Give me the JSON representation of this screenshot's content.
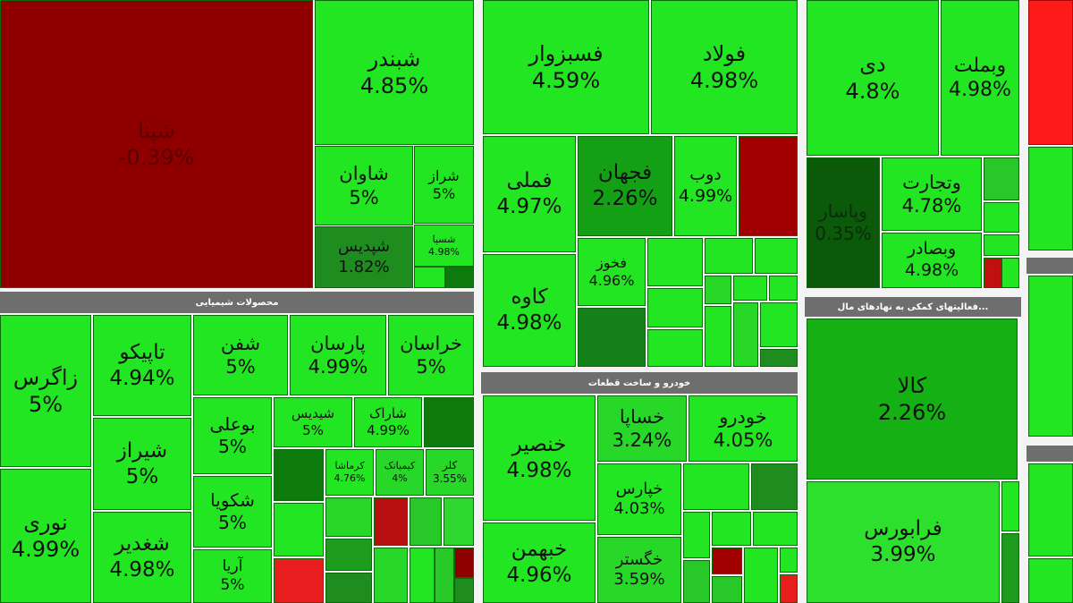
{
  "sections": [
    {
      "tiles": [
        {
          "name": "شپنا",
          "change": "-0.39%",
          "color": "#8e0000"
        },
        {
          "name": "شبندر",
          "change": "4.85%",
          "color": "#22e622"
        },
        {
          "name": "شاوان",
          "change": "5%",
          "color": "#22e622"
        },
        {
          "name": "شراز",
          "change": "5%",
          "color": "#22e622"
        },
        {
          "name": "شپدیس",
          "change": "1.82%",
          "color": "#1e8c1e"
        },
        {
          "name": "شسپا",
          "change": "4.98%",
          "color": "#22e622"
        }
      ]
    },
    {
      "title": "محصولات شیمیایی",
      "tiles": [
        {
          "name": "زاگرس",
          "change": "5%",
          "color": "#22e622"
        },
        {
          "name": "نوری",
          "change": "4.99%",
          "color": "#22e622"
        },
        {
          "name": "تاپیکو",
          "change": "4.94%",
          "color": "#22e622"
        },
        {
          "name": "شیراز",
          "change": "5%",
          "color": "#22e622"
        },
        {
          "name": "شغدیر",
          "change": "4.98%",
          "color": "#22e622"
        },
        {
          "name": "شفن",
          "change": "5%",
          "color": "#22e622"
        },
        {
          "name": "پارسان",
          "change": "4.99%",
          "color": "#22e622"
        },
        {
          "name": "خراسان",
          "change": "5%",
          "color": "#22e622"
        },
        {
          "name": "بوعلی",
          "change": "5%",
          "color": "#22e622"
        },
        {
          "name": "شکویا",
          "change": "5%",
          "color": "#22e622"
        },
        {
          "name": "آریا",
          "change": "5%",
          "color": "#22e622"
        },
        {
          "name": "شیدیس",
          "change": "5%",
          "color": "#22e622"
        },
        {
          "name": "شاراک",
          "change": "4.99%",
          "color": "#22e622"
        },
        {
          "name": "کرماشا",
          "change": "4.76%",
          "color": "#22e622"
        },
        {
          "name": "کیمیاتک",
          "change": "4%",
          "color": "#28d828"
        },
        {
          "name": "کلر",
          "change": "3.55%",
          "color": "#28d828"
        }
      ]
    },
    {
      "tiles": [
        {
          "name": "فسبزوار",
          "change": "4.59%",
          "color": "#22e622"
        },
        {
          "name": "فولاد",
          "change": "4.98%",
          "color": "#22e622"
        },
        {
          "name": "فملی",
          "change": "4.97%",
          "color": "#22e622"
        },
        {
          "name": "فجهان",
          "change": "2.26%",
          "color": "#14a014"
        },
        {
          "name": "دوب",
          "change": "4.99%",
          "color": "#22e622"
        },
        {
          "name": "کاوه",
          "change": "4.98%",
          "color": "#22e622"
        },
        {
          "name": "فخوز",
          "change": "4.96%",
          "color": "#22e622"
        }
      ]
    },
    {
      "title": "خودرو و ساخت قطعات",
      "tiles": [
        {
          "name": "خنصیر",
          "change": "4.98%",
          "color": "#22e622"
        },
        {
          "name": "خبهمن",
          "change": "4.96%",
          "color": "#22e622"
        },
        {
          "name": "خساپا",
          "change": "3.24%",
          "color": "#28d828"
        },
        {
          "name": "خودرو",
          "change": "4.05%",
          "color": "#22e622"
        },
        {
          "name": "خپارس",
          "change": "4.03%",
          "color": "#22e622"
        },
        {
          "name": "خگستر",
          "change": "3.59%",
          "color": "#28d828"
        }
      ]
    },
    {
      "tiles": [
        {
          "name": "دی",
          "change": "4.8%",
          "color": "#22e622"
        },
        {
          "name": "وبملت",
          "change": "4.98%",
          "color": "#22e622"
        },
        {
          "name": "وپاسار",
          "change": "0.35%",
          "color": "#0a5a0a"
        },
        {
          "name": "وتجارت",
          "change": "4.78%",
          "color": "#22e622"
        },
        {
          "name": "وبصادر",
          "change": "4.98%",
          "color": "#22e622"
        }
      ]
    },
    {
      "title": "...فعالیتهای کمکی به نهادهای مال",
      "tiles": [
        {
          "name": "کالا",
          "change": "2.26%",
          "color": "#14b014"
        },
        {
          "name": "فرابورس",
          "change": "3.99%",
          "color": "#2ee02e"
        }
      ]
    }
  ]
}
